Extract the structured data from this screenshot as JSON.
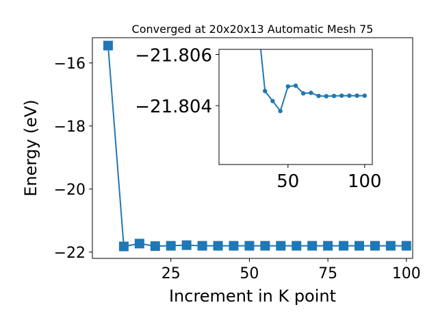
{
  "chart_data": [
    {
      "type": "line",
      "title": "Converged at 20x20x13 Automatic Mesh 75",
      "xlabel": "Increment in K point",
      "ylabel": "Energy (eV)",
      "xlim": [
        0,
        102
      ],
      "ylim": [
        -22.2,
        -15.2
      ],
      "xticks": [
        25,
        50,
        75,
        100
      ],
      "xtick_labels": [
        "25",
        "50",
        "75",
        "100"
      ],
      "yticks": [
        -22,
        -20,
        -18,
        -16
      ],
      "ytick_labels": [
        "−22",
        "−20",
        "−18",
        "−16"
      ],
      "marker": "square",
      "color": "#1f77b4",
      "series": [
        {
          "x": [
            5,
            10,
            15,
            20,
            25,
            30,
            35,
            40,
            45,
            50,
            55,
            60,
            65,
            70,
            75,
            80,
            85,
            90,
            95,
            100
          ],
          "y": [
            -15.45,
            -21.82,
            -21.73,
            -21.81,
            -21.8,
            -21.78,
            -21.8,
            -21.8,
            -21.8,
            -21.8,
            -21.8,
            -21.8,
            -21.8,
            -21.8,
            -21.8,
            -21.8,
            -21.8,
            -21.8,
            -21.8,
            -21.8
          ]
        }
      ]
    },
    {
      "type": "line",
      "title": "",
      "inset": true,
      "xlim": [
        5,
        105
      ],
      "ylim": [
        -21.8017,
        -21.8062
      ],
      "y_inverted": true,
      "xticks": [
        50,
        100
      ],
      "xtick_labels": [
        "50",
        "100"
      ],
      "yticks": [
        -21.806,
        -21.804
      ],
      "ytick_labels": [
        "−21.806",
        "−21.804"
      ],
      "marker": "circle",
      "color": "#1f77b4",
      "series": [
        {
          "x": [
            30,
            35,
            40,
            45,
            50,
            55,
            60,
            65,
            70,
            75,
            80,
            85,
            90,
            95,
            100
          ],
          "y": [
            -21.8075,
            -21.80457,
            -21.80418,
            -21.80379,
            -21.80475,
            -21.80478,
            -21.80448,
            -21.8045,
            -21.80438,
            -21.80437,
            -21.80438,
            -21.80439,
            -21.80439,
            -21.80439,
            -21.80439
          ]
        }
      ]
    }
  ]
}
